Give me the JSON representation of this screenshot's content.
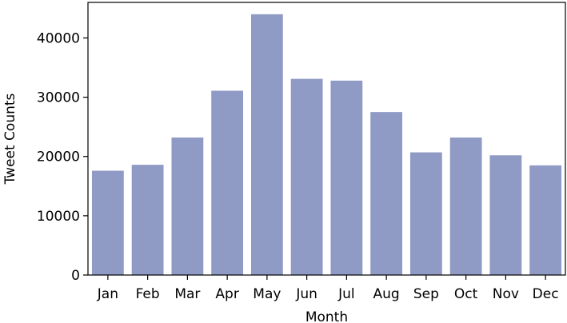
{
  "chart_data": {
    "type": "bar",
    "title": "",
    "xlabel": "Month",
    "ylabel": "Tweet Counts",
    "categories": [
      "Jan",
      "Feb",
      "Mar",
      "Apr",
      "May",
      "Jun",
      "Jul",
      "Aug",
      "Sep",
      "Oct",
      "Nov",
      "Dec"
    ],
    "values": [
      17600,
      18600,
      23200,
      31100,
      44000,
      33100,
      32800,
      27500,
      20700,
      23200,
      20200,
      18500
    ],
    "ylim": [
      0,
      46000
    ],
    "yticks": [
      0,
      10000,
      20000,
      30000,
      40000
    ],
    "ytick_labels": [
      "0",
      "10000",
      "20000",
      "30000",
      "40000"
    ],
    "bar_color": "#8f9ac5",
    "grid": false,
    "legend": null
  }
}
